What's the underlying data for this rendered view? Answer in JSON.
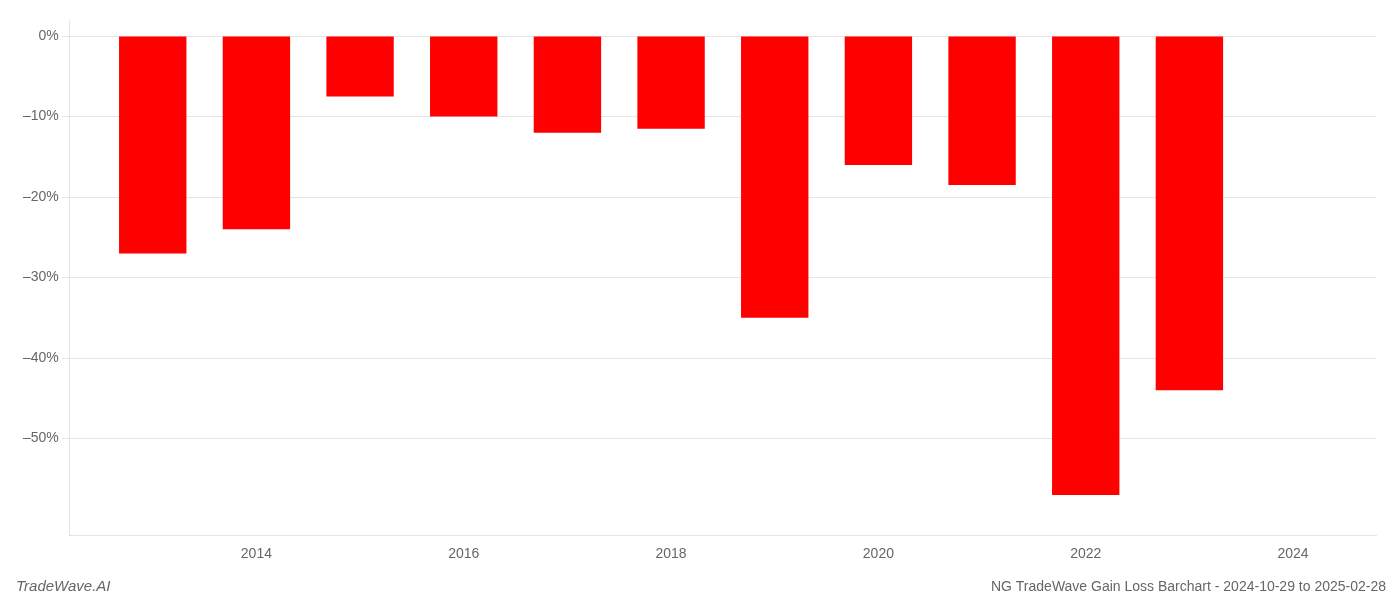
{
  "chart_data": {
    "type": "bar",
    "title": "NG TradeWave Gain Loss Barchart - 2024-10-29 to 2025-02-28",
    "annotations": [
      "TradeWave.AI"
    ],
    "x": [
      2013,
      2014,
      2015,
      2016,
      2017,
      2018,
      2019,
      2020,
      2021,
      2022,
      2023
    ],
    "values": [
      -27.0,
      -24.0,
      -7.5,
      -10.0,
      -12.0,
      -11.5,
      -35.0,
      -16.0,
      -18.5,
      -57.0,
      -44.0
    ],
    "color": "#ff0000",
    "xlim": [
      2012.2,
      2024.8
    ],
    "xticks": [
      2014,
      2016,
      2018,
      2020,
      2022,
      2024
    ],
    "ylim": [
      -62,
      2
    ],
    "yticks": [
      {
        "value": 0,
        "label": "0%"
      },
      {
        "value": -10,
        "label": "–10%"
      },
      {
        "value": -20,
        "label": "–20%"
      },
      {
        "value": -30,
        "label": "–30%"
      },
      {
        "value": -40,
        "label": "–40%"
      },
      {
        "value": -50,
        "label": "–50%"
      }
    ],
    "grid": true
  }
}
